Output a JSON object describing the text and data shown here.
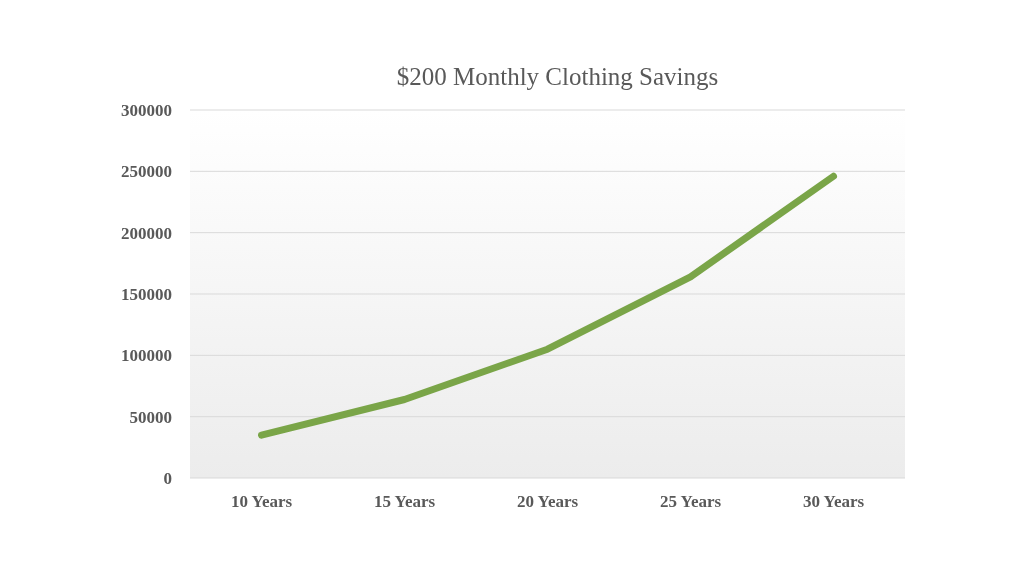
{
  "chart_data": {
    "type": "line",
    "title": "$200 Monthly Clothing Savings",
    "categories": [
      "10 Years",
      "15 Years",
      "20 Years",
      "25 Years",
      "30 Years"
    ],
    "series": [
      {
        "color": "#7aa548",
        "values": [
          35000,
          64000,
          105000,
          164000,
          246000
        ]
      }
    ],
    "ylim": [
      0,
      300000
    ],
    "yticks": [
      0,
      50000,
      100000,
      150000,
      200000,
      250000,
      300000
    ],
    "grid": "y",
    "marker": "none",
    "line_style": "solid"
  }
}
